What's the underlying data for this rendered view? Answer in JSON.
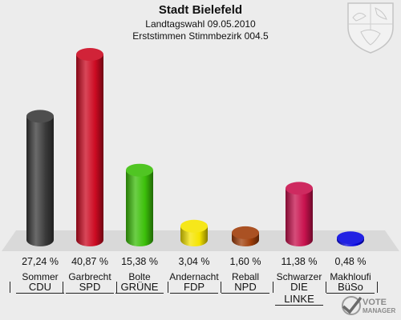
{
  "header": {
    "title": "Stadt Bielefeld",
    "subtitle1": "Landtagswahl 09.05.2010",
    "subtitle2": "Erststimmen Stimmbezirk 004.5"
  },
  "watermark": {
    "line1": "VOTE",
    "line2": "MANAGER",
    "icon": "check-mark-icon"
  },
  "emblem": {
    "icon": "nrw-coat-of-arms-icon"
  },
  "chart_data": {
    "type": "bar",
    "categories": [
      "CDU",
      "SPD",
      "GRÜNE",
      "FDP",
      "NPD",
      "DIE LINKE",
      "BüSo"
    ],
    "candidates": [
      "Sommer",
      "Garbrecht",
      "Bolte",
      "Andernacht",
      "Reball",
      "Schwarzer",
      "Makhloufi"
    ],
    "values": [
      27.24,
      40.87,
      15.38,
      3.04,
      1.6,
      11.38,
      0.48
    ],
    "labels": [
      "27,24 %",
      "40,87 %",
      "15,38 %",
      "3,04 %",
      "1,60 %",
      "11,38 %",
      "0,48 %"
    ],
    "colors": [
      "#3a3a3a",
      "#cc0a22",
      "#3cbf0a",
      "#f5e400",
      "#a03e0a",
      "#c8124e",
      "#0808e0"
    ],
    "ylim": [
      0,
      40.87
    ],
    "grid": false
  }
}
